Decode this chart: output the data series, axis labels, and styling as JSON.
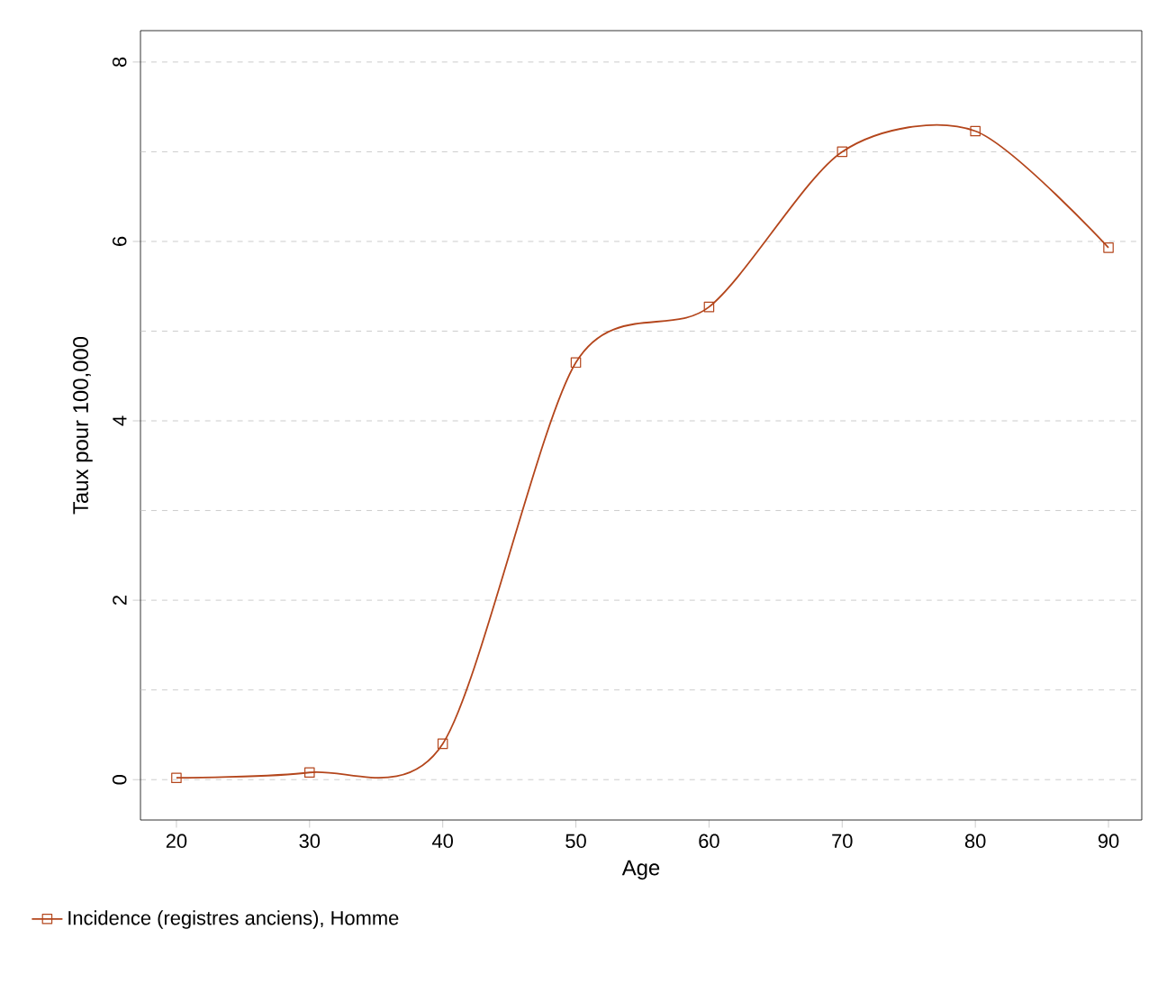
{
  "chart_data": {
    "type": "line",
    "xlabel": "Age",
    "ylabel": "Taux pour 100,000",
    "x": [
      20,
      30,
      40,
      50,
      60,
      70,
      80,
      90
    ],
    "series": [
      {
        "name": "Incidence (registres anciens), Homme",
        "color": "#b4461c",
        "values": [
          0.02,
          0.08,
          0.4,
          4.65,
          5.27,
          7.0,
          7.23,
          5.93
        ]
      }
    ],
    "xlim": [
      17.3,
      92.5
    ],
    "ylim": [
      -0.45,
      8.35
    ],
    "xticks": [
      20,
      30,
      40,
      50,
      60,
      70,
      80,
      90
    ],
    "yticks": [
      0,
      {
        "value": 1,
        "label": null
      },
      2,
      {
        "value": 3,
        "label": null
      },
      4,
      {
        "value": 5,
        "label": null
      },
      6,
      {
        "value": 7,
        "label": null
      },
      8
    ],
    "grid": "y",
    "legend": "bottom left",
    "marker": "square",
    "line_style": "solid"
  }
}
